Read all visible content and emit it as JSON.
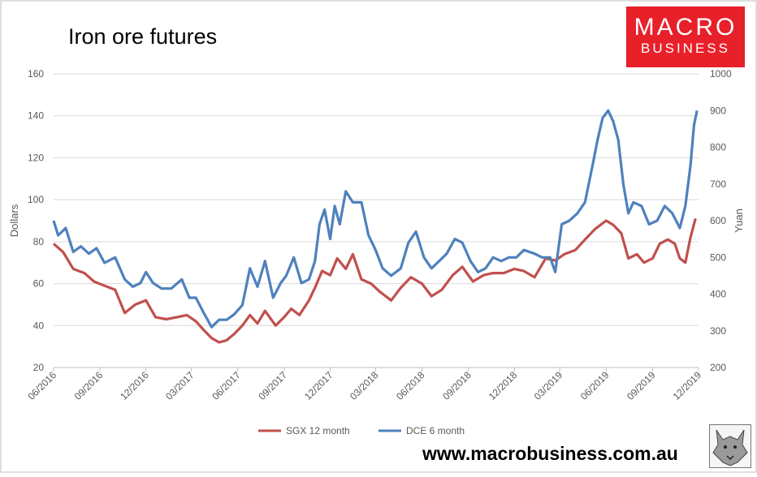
{
  "header": {
    "title": "Iron ore futures"
  },
  "logo": {
    "line1": "MACRO",
    "line2": "BUSINESS"
  },
  "footer": {
    "url": "www.macrobusiness.com.au"
  },
  "colors": {
    "sgx": "#c0504d",
    "dce": "#4f81bd",
    "grid": "#d9d9d9",
    "logo_bg": "#e8202a"
  },
  "chart_data": {
    "type": "line",
    "title": "Iron ore futures",
    "ylabel": "Dollars",
    "y2label": "Yuan",
    "ylim": [
      20,
      160
    ],
    "y2lim": [
      200,
      1000
    ],
    "yticks": [
      20,
      40,
      60,
      80,
      100,
      120,
      140,
      160
    ],
    "y2ticks": [
      200,
      300,
      400,
      500,
      600,
      700,
      800,
      900,
      1000
    ],
    "xticks": [
      "06/2016",
      "09/2016",
      "12/2016",
      "03/2017",
      "06/2017",
      "09/2017",
      "12/2017",
      "03/2018",
      "06/2018",
      "09/2018",
      "12/2018",
      "03/2019",
      "06/2019",
      "09/2019",
      "12/2019"
    ],
    "xlim": [
      "2016-06-01",
      "2019-12-01"
    ],
    "grid": true,
    "legend": "bottom",
    "series": [
      {
        "name": "SGX 12 month",
        "axis": "left",
        "color": "#c0504d",
        "points": [
          [
            "2016-06-01",
            79
          ],
          [
            "2016-06-20",
            75
          ],
          [
            "2016-07-10",
            67
          ],
          [
            "2016-08-01",
            65
          ],
          [
            "2016-08-20",
            61
          ],
          [
            "2016-09-10",
            59
          ],
          [
            "2016-10-01",
            57
          ],
          [
            "2016-10-20",
            46
          ],
          [
            "2016-11-10",
            50
          ],
          [
            "2016-12-01",
            52
          ],
          [
            "2016-12-20",
            44
          ],
          [
            "2017-01-10",
            43
          ],
          [
            "2017-02-01",
            44
          ],
          [
            "2017-02-20",
            45
          ],
          [
            "2017-03-10",
            42
          ],
          [
            "2017-03-25",
            38
          ],
          [
            "2017-04-10",
            34
          ],
          [
            "2017-04-25",
            32
          ],
          [
            "2017-05-10",
            33
          ],
          [
            "2017-05-25",
            36
          ],
          [
            "2017-06-10",
            40
          ],
          [
            "2017-06-25",
            45
          ],
          [
            "2017-07-10",
            41
          ],
          [
            "2017-07-25",
            47
          ],
          [
            "2017-08-15",
            40
          ],
          [
            "2017-09-01",
            44
          ],
          [
            "2017-09-15",
            48
          ],
          [
            "2017-10-01",
            45
          ],
          [
            "2017-10-20",
            52
          ],
          [
            "2017-11-01",
            58
          ],
          [
            "2017-11-15",
            66
          ],
          [
            "2017-12-01",
            64
          ],
          [
            "2017-12-15",
            72
          ],
          [
            "2018-01-01",
            67
          ],
          [
            "2018-01-15",
            74
          ],
          [
            "2018-02-01",
            62
          ],
          [
            "2018-02-20",
            60
          ],
          [
            "2018-03-10",
            56
          ],
          [
            "2018-04-01",
            52
          ],
          [
            "2018-04-20",
            58
          ],
          [
            "2018-05-10",
            63
          ],
          [
            "2018-06-01",
            60
          ],
          [
            "2018-06-20",
            54
          ],
          [
            "2018-07-10",
            57
          ],
          [
            "2018-08-01",
            64
          ],
          [
            "2018-08-20",
            68
          ],
          [
            "2018-09-10",
            61
          ],
          [
            "2018-10-01",
            64
          ],
          [
            "2018-10-20",
            65
          ],
          [
            "2018-11-10",
            65
          ],
          [
            "2018-12-01",
            67
          ],
          [
            "2018-12-20",
            66
          ],
          [
            "2019-01-10",
            63
          ],
          [
            "2019-02-01",
            72
          ],
          [
            "2019-02-20",
            71
          ],
          [
            "2019-03-10",
            74
          ],
          [
            "2019-04-01",
            76
          ],
          [
            "2019-04-20",
            81
          ],
          [
            "2019-05-10",
            86
          ],
          [
            "2019-06-01",
            90
          ],
          [
            "2019-06-15",
            88
          ],
          [
            "2019-07-01",
            84
          ],
          [
            "2019-07-15",
            72
          ],
          [
            "2019-08-01",
            74
          ],
          [
            "2019-08-15",
            70
          ],
          [
            "2019-09-01",
            72
          ],
          [
            "2019-09-15",
            79
          ],
          [
            "2019-10-01",
            81
          ],
          [
            "2019-10-15",
            79
          ],
          [
            "2019-10-25",
            72
          ],
          [
            "2019-11-05",
            70
          ],
          [
            "2019-11-15",
            82
          ],
          [
            "2019-11-25",
            91
          ]
        ]
      },
      {
        "name": "DCE 6 month",
        "axis": "right",
        "color": "#4f81bd",
        "points": [
          [
            "2016-06-01",
            600
          ],
          [
            "2016-06-10",
            560
          ],
          [
            "2016-06-25",
            580
          ],
          [
            "2016-07-10",
            515
          ],
          [
            "2016-07-25",
            530
          ],
          [
            "2016-08-10",
            510
          ],
          [
            "2016-08-25",
            525
          ],
          [
            "2016-09-10",
            485
          ],
          [
            "2016-10-01",
            500
          ],
          [
            "2016-10-20",
            440
          ],
          [
            "2016-11-05",
            420
          ],
          [
            "2016-11-20",
            430
          ],
          [
            "2016-12-01",
            460
          ],
          [
            "2016-12-15",
            430
          ],
          [
            "2017-01-01",
            415
          ],
          [
            "2017-01-20",
            415
          ],
          [
            "2017-02-10",
            440
          ],
          [
            "2017-02-25",
            390
          ],
          [
            "2017-03-10",
            390
          ],
          [
            "2017-03-25",
            350
          ],
          [
            "2017-04-10",
            310
          ],
          [
            "2017-04-25",
            330
          ],
          [
            "2017-05-10",
            330
          ],
          [
            "2017-05-25",
            345
          ],
          [
            "2017-06-10",
            370
          ],
          [
            "2017-06-25",
            470
          ],
          [
            "2017-07-10",
            420
          ],
          [
            "2017-07-25",
            490
          ],
          [
            "2017-08-10",
            390
          ],
          [
            "2017-08-25",
            430
          ],
          [
            "2017-09-05",
            450
          ],
          [
            "2017-09-20",
            500
          ],
          [
            "2017-10-05",
            430
          ],
          [
            "2017-10-20",
            440
          ],
          [
            "2017-11-01",
            490
          ],
          [
            "2017-11-10",
            590
          ],
          [
            "2017-11-20",
            630
          ],
          [
            "2017-12-01",
            550
          ],
          [
            "2017-12-10",
            640
          ],
          [
            "2017-12-20",
            590
          ],
          [
            "2018-01-01",
            680
          ],
          [
            "2018-01-15",
            650
          ],
          [
            "2018-02-01",
            650
          ],
          [
            "2018-02-15",
            560
          ],
          [
            "2018-03-01",
            520
          ],
          [
            "2018-03-15",
            470
          ],
          [
            "2018-04-01",
            450
          ],
          [
            "2018-04-20",
            470
          ],
          [
            "2018-05-05",
            540
          ],
          [
            "2018-05-20",
            570
          ],
          [
            "2018-06-05",
            500
          ],
          [
            "2018-06-20",
            470
          ],
          [
            "2018-07-05",
            490
          ],
          [
            "2018-07-20",
            510
          ],
          [
            "2018-08-05",
            550
          ],
          [
            "2018-08-20",
            540
          ],
          [
            "2018-09-05",
            490
          ],
          [
            "2018-09-20",
            460
          ],
          [
            "2018-10-05",
            470
          ],
          [
            "2018-10-20",
            500
          ],
          [
            "2018-11-05",
            490
          ],
          [
            "2018-11-20",
            500
          ],
          [
            "2018-12-05",
            500
          ],
          [
            "2018-12-20",
            520
          ],
          [
            "2019-01-10",
            510
          ],
          [
            "2019-01-25",
            500
          ],
          [
            "2019-02-10",
            500
          ],
          [
            "2019-02-20",
            460
          ],
          [
            "2019-03-05",
            590
          ],
          [
            "2019-03-20",
            600
          ],
          [
            "2019-04-05",
            620
          ],
          [
            "2019-04-20",
            650
          ],
          [
            "2019-05-05",
            750
          ],
          [
            "2019-05-15",
            820
          ],
          [
            "2019-05-25",
            880
          ],
          [
            "2019-06-05",
            900
          ],
          [
            "2019-06-15",
            870
          ],
          [
            "2019-06-25",
            820
          ],
          [
            "2019-07-05",
            700
          ],
          [
            "2019-07-15",
            620
          ],
          [
            "2019-07-25",
            650
          ],
          [
            "2019-08-10",
            640
          ],
          [
            "2019-08-25",
            590
          ],
          [
            "2019-09-10",
            600
          ],
          [
            "2019-09-25",
            640
          ],
          [
            "2019-10-10",
            620
          ],
          [
            "2019-10-25",
            580
          ],
          [
            "2019-11-05",
            640
          ],
          [
            "2019-11-15",
            750
          ],
          [
            "2019-11-22",
            860
          ],
          [
            "2019-11-28",
            900
          ]
        ]
      }
    ]
  }
}
